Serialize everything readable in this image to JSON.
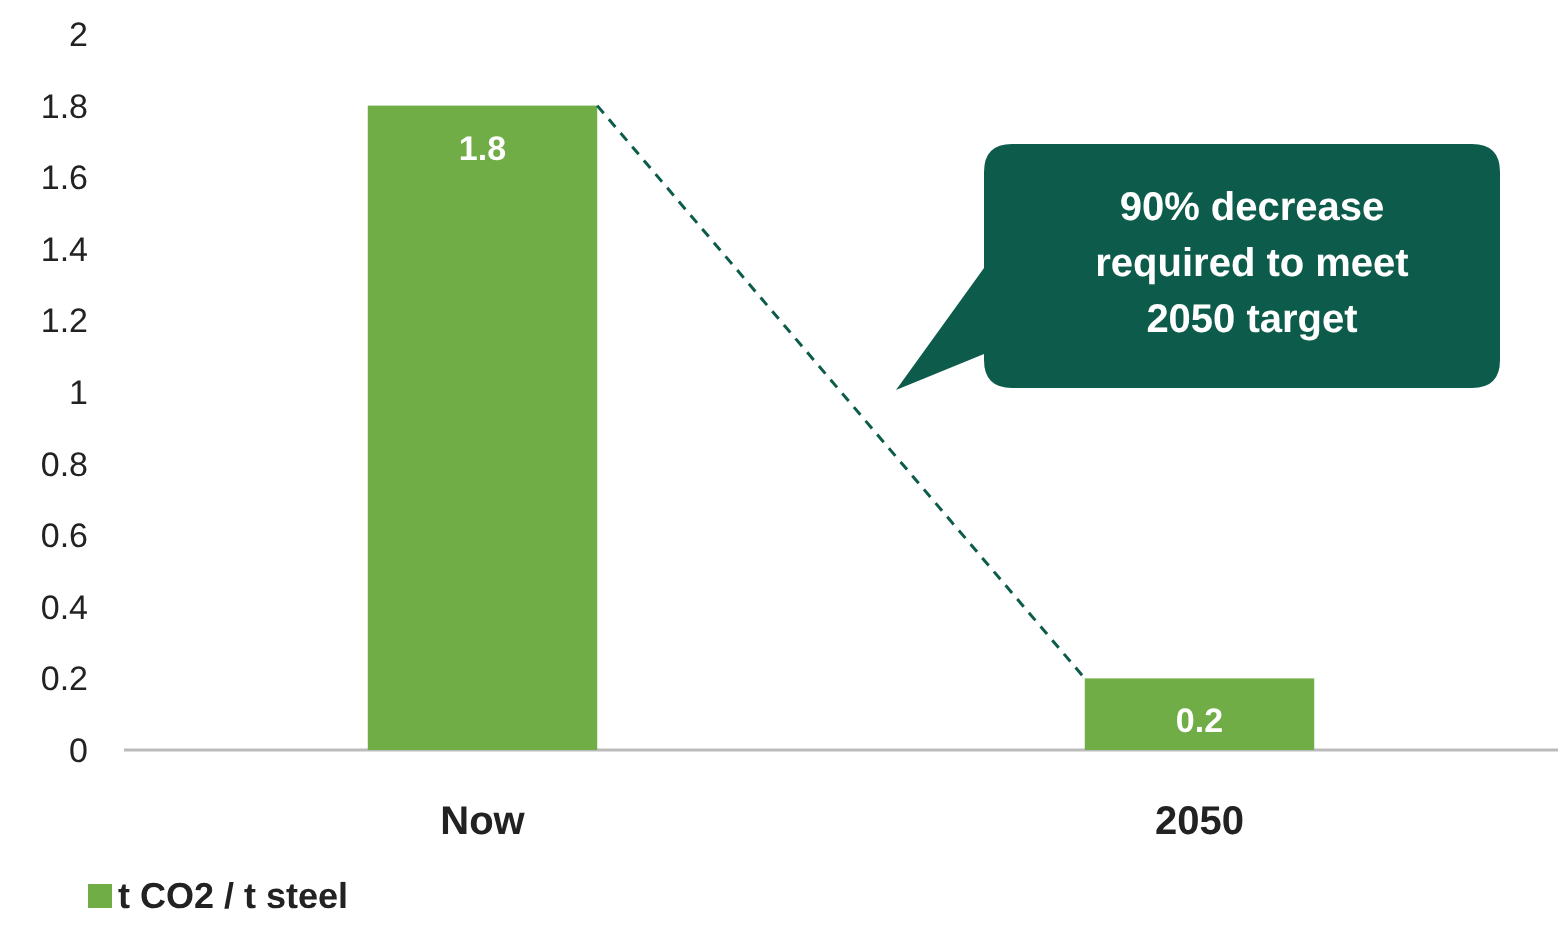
{
  "chart_data": {
    "type": "bar",
    "categories": [
      "Now",
      "2050"
    ],
    "series": [
      {
        "name": "t CO2 / t steel",
        "color": "#70ad47",
        "values": [
          1.8,
          0.2
        ]
      }
    ],
    "ylim": [
      0,
      2
    ],
    "yticks": [
      0,
      0.2,
      0.4,
      0.6,
      0.8,
      1,
      1.2,
      1.4,
      1.6,
      1.8,
      2
    ],
    "grid": false,
    "legend": "bottom left",
    "data_labels": true,
    "annotations": [
      "90% decrease required to meet 2050 target"
    ]
  }
}
